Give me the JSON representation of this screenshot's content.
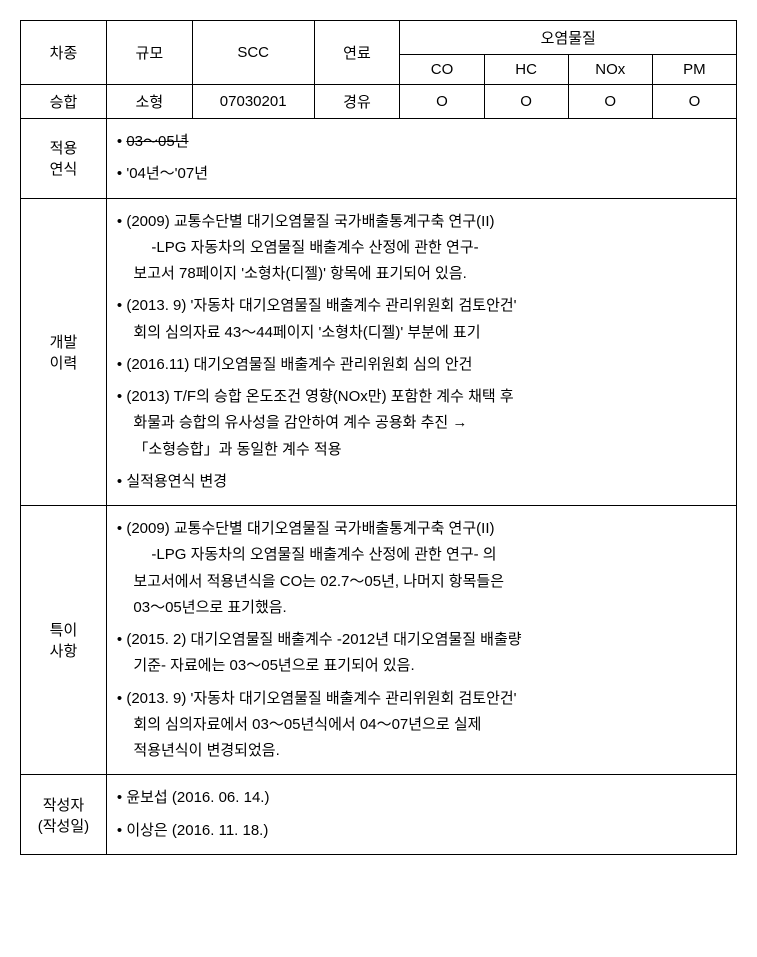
{
  "header": {
    "col_vehicle": "차종",
    "col_scale": "규모",
    "col_scc": "SCC",
    "col_fuel": "연료",
    "col_pollutant_group": "오염물질",
    "sub_co": "CO",
    "sub_hc": "HC",
    "sub_nox": "NOx",
    "sub_pm": "PM"
  },
  "row_data": {
    "vehicle": "승합",
    "scale": "소형",
    "scc": "07030201",
    "fuel": "경유",
    "co": "O",
    "hc": "O",
    "nox": "O",
    "pm": "O"
  },
  "sections": {
    "year": {
      "label_line1": "적용",
      "label_line2": "연식",
      "item1_strike": "03～05년",
      "item2": "'04년～'07년"
    },
    "history": {
      "label_line1": "개발",
      "label_line2": "이력",
      "item1_l1": "(2009) 교통수단별 대기오염물질 국가배출통계구축 연구(II)",
      "item1_l2": "-LPG 자동차의 오염물질 배출계수 산정에 관한 연구-",
      "item1_l3": "보고서 78페이지 '소형차(디젤)' 항목에 표기되어 있음.",
      "item2_l1": "(2013. 9) '자동차 대기오염물질 배출계수 관리위원회 검토안건'",
      "item2_l2": "회의 심의자료 43～44페이지 '소형차(디젤)' 부분에 표기",
      "item3": "(2016.11) 대기오염물질 배출계수 관리위원회 심의 안건",
      "item4_l1": "(2013) T/F의 승합 온도조건 영향(NOx만) 포함한 계수 채택 후",
      "item4_l2": "화물과 승합의 유사성을 감안하여 계수 공용화 추진 →",
      "item4_l3": "「소형승합」과 동일한 계수 적용",
      "item5": "실적용연식 변경"
    },
    "notes": {
      "label_line1": "특이",
      "label_line2": "사항",
      "item1_l1": "(2009) 교통수단별 대기오염물질 국가배출통계구축 연구(II)",
      "item1_l2": "-LPG 자동차의 오염물질 배출계수 산정에 관한 연구- 의",
      "item1_l3": "보고서에서 적용년식을 CO는 02.7～05년, 나머지 항목들은",
      "item1_l4": "03～05년으로 표기했음.",
      "item2_l1": "(2015. 2) 대기오염물질 배출계수 -2012년 대기오염물질 배출량",
      "item2_l2": "기준- 자료에는 03～05년으로 표기되어 있음.",
      "item3_l1": "(2013. 9) '자동차 대기오염물질 배출계수 관리위원회 검토안건'",
      "item3_l2": "회의 심의자료에서 03～05년식에서 04～07년으로 실제",
      "item3_l3": "적용년식이 변경되었음."
    },
    "author": {
      "label_line1": "작성자",
      "label_line2": "(작성일)",
      "item1": "윤보섭 (2016. 06. 14.)",
      "item2": "이상은 (2016. 11. 18.)"
    }
  }
}
